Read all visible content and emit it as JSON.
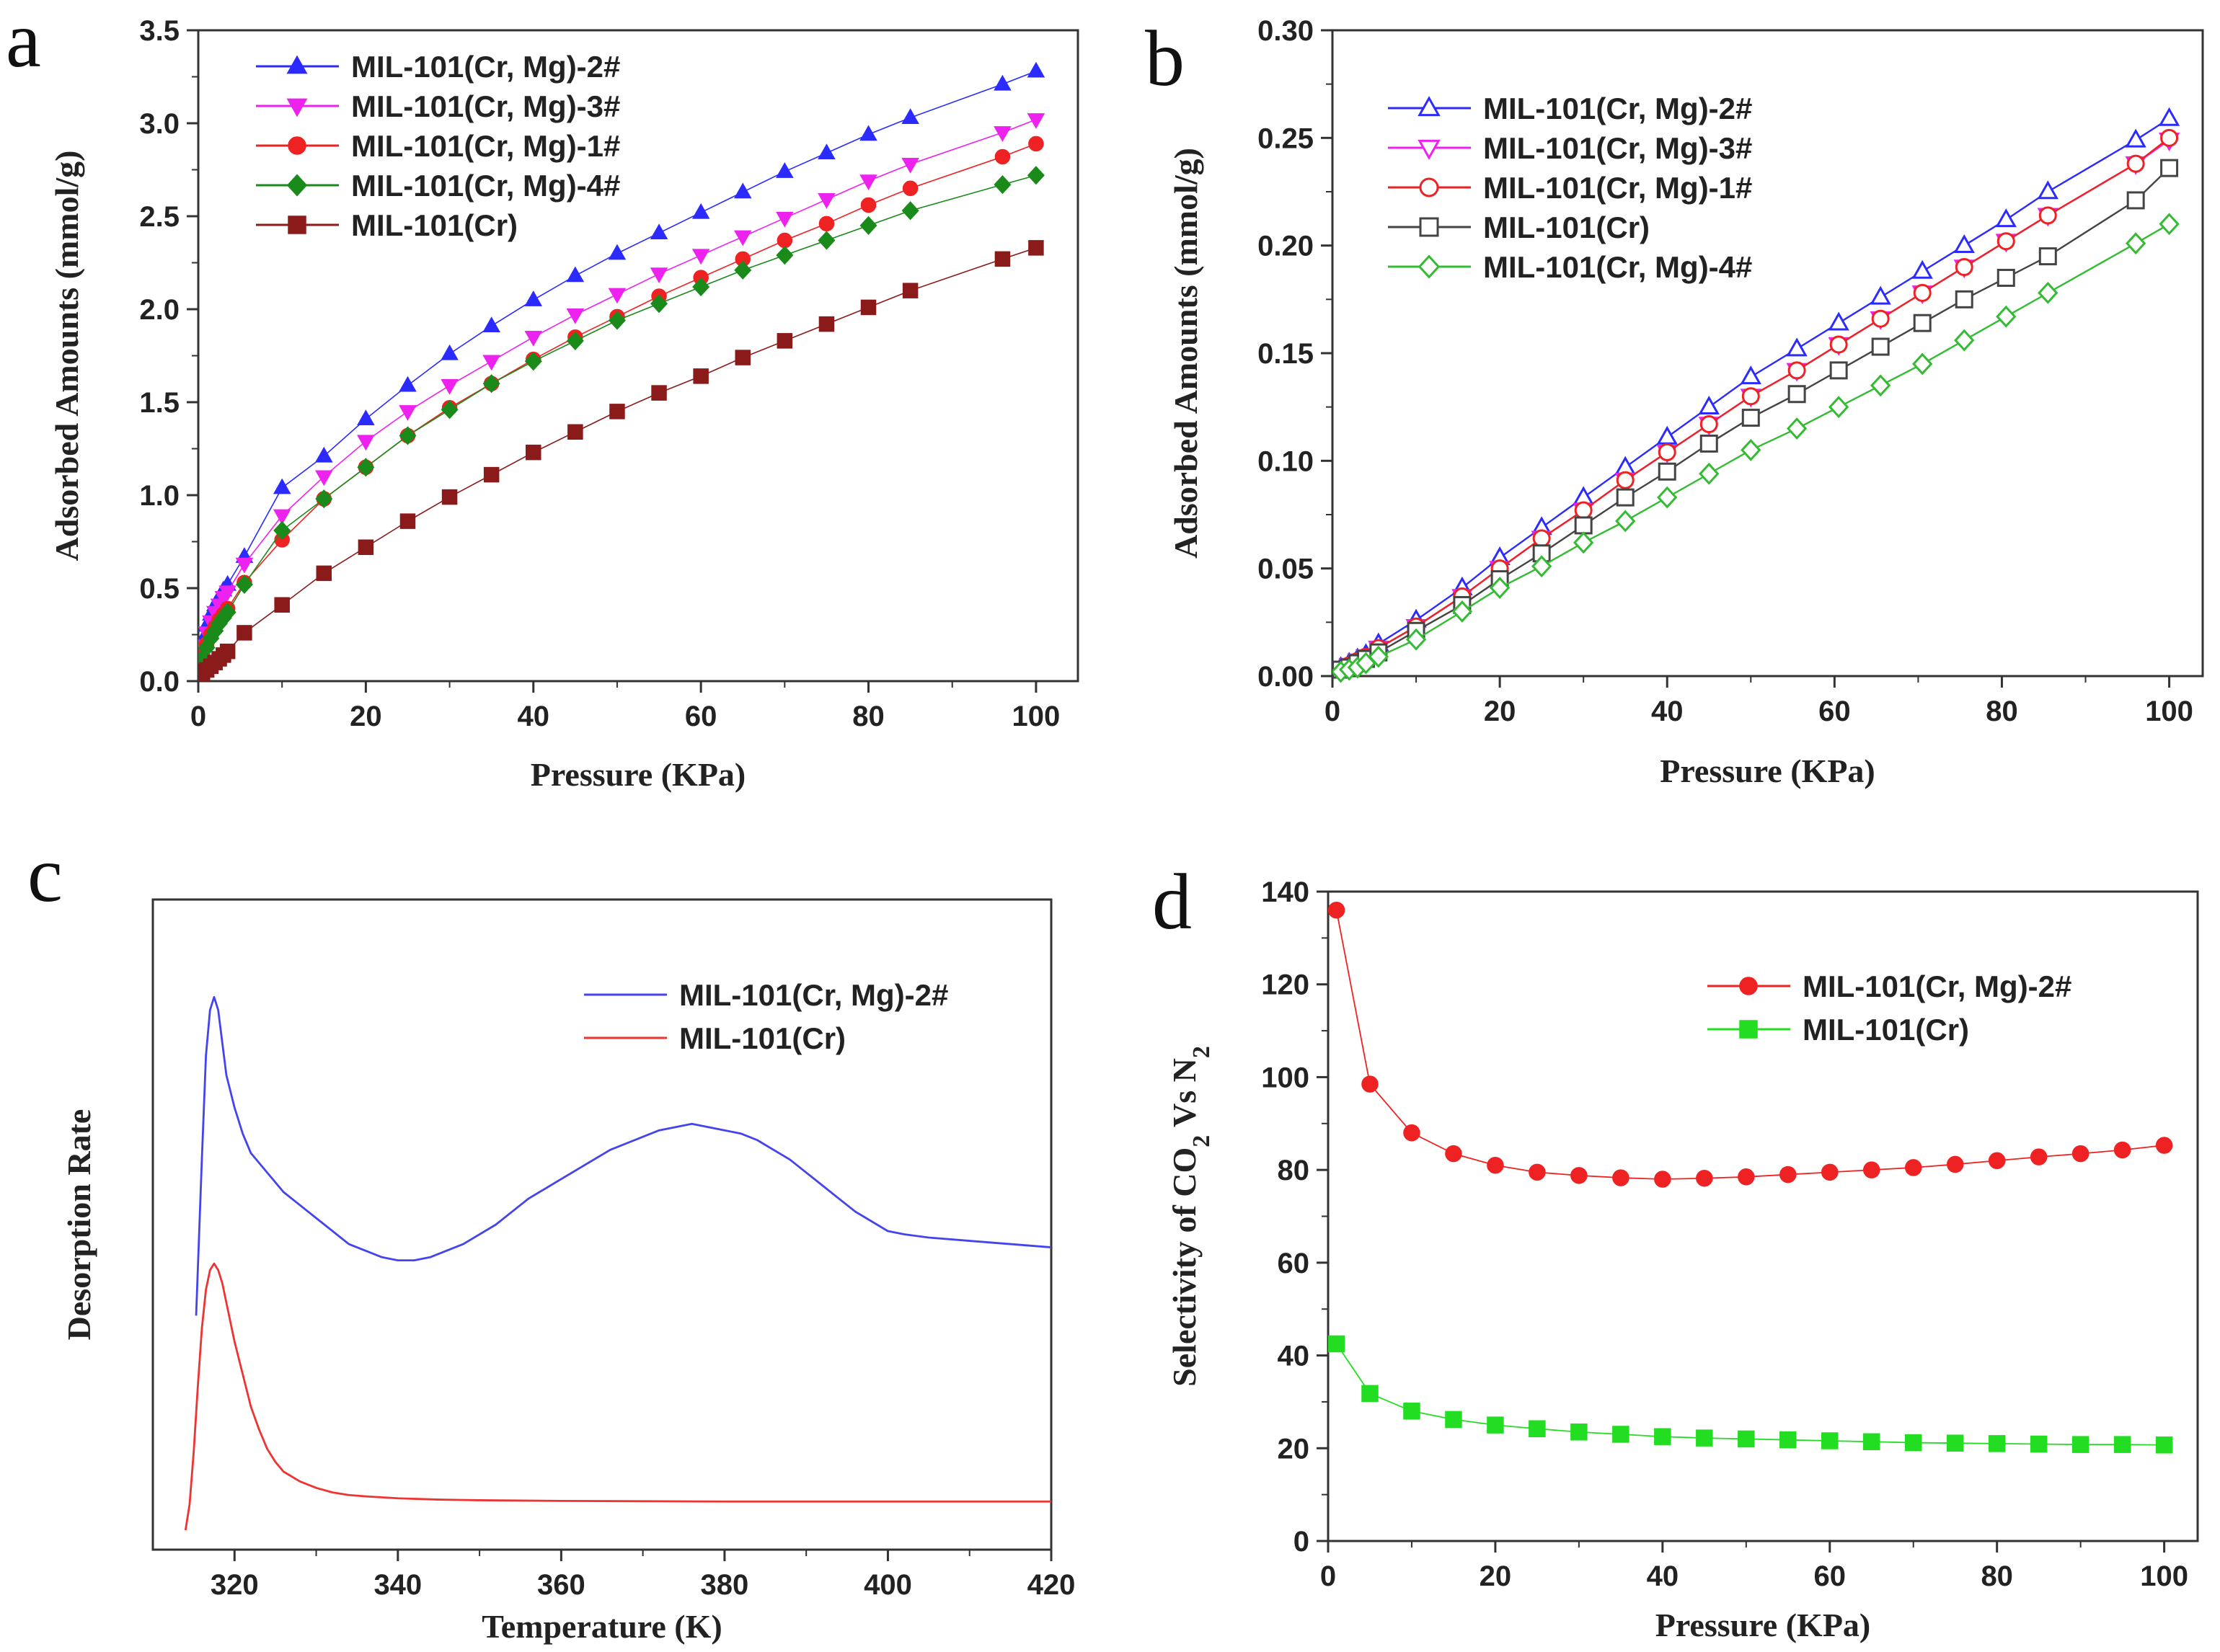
{
  "chart_data": [
    {
      "panel": "a",
      "type": "line",
      "xlabel": "Pressure (KPa)",
      "ylabel": "Adsorbed Amounts (mmol/g)",
      "xlim": [
        0,
        105
      ],
      "ylim": [
        0,
        3.5
      ],
      "xticks": [
        0,
        20,
        40,
        60,
        80,
        100
      ],
      "yticks": [
        0.0,
        0.5,
        1.0,
        1.5,
        2.0,
        2.5,
        3.0,
        3.5
      ],
      "ytick_decimals": 1,
      "legend_position": "top-left",
      "x": [
        0.5,
        1.0,
        1.5,
        2.0,
        2.5,
        3.0,
        3.5,
        5.5,
        10,
        15,
        20,
        25,
        30,
        35,
        40,
        45,
        50,
        55,
        60,
        65,
        70,
        75,
        80,
        85,
        96,
        100
      ],
      "series": [
        {
          "name": "MIL-101(Cr, Mg)-2#",
          "color": "#2b2bff",
          "marker": "triangle-up",
          "filled": true,
          "values": [
            0.22,
            0.3,
            0.36,
            0.41,
            0.45,
            0.49,
            0.52,
            0.67,
            1.04,
            1.21,
            1.41,
            1.59,
            1.76,
            1.91,
            2.05,
            2.18,
            2.3,
            2.41,
            2.52,
            2.63,
            2.74,
            2.84,
            2.94,
            3.03,
            3.21,
            3.28
          ]
        },
        {
          "name": "MIL-101(Cr, Mg)-3#",
          "color": "#ee22ee",
          "marker": "triangle-down",
          "filled": true,
          "values": [
            0.19,
            0.26,
            0.32,
            0.37,
            0.41,
            0.45,
            0.48,
            0.63,
            0.89,
            1.1,
            1.29,
            1.45,
            1.59,
            1.72,
            1.85,
            1.97,
            2.08,
            2.19,
            2.29,
            2.39,
            2.49,
            2.59,
            2.69,
            2.78,
            2.95,
            3.02
          ]
        },
        {
          "name": "MIL-101(Cr, Mg)-1#",
          "color": "#ee2222",
          "marker": "circle",
          "filled": true,
          "values": [
            0.14,
            0.2,
            0.25,
            0.29,
            0.33,
            0.36,
            0.39,
            0.53,
            0.76,
            0.98,
            1.15,
            1.32,
            1.47,
            1.6,
            1.73,
            1.85,
            1.96,
            2.07,
            2.17,
            2.27,
            2.37,
            2.46,
            2.56,
            2.65,
            2.82,
            2.89
          ]
        },
        {
          "name": "MIL-101(Cr, Mg)-4#",
          "color": "#1a8a1a",
          "marker": "diamond",
          "filled": true,
          "values": [
            0.12,
            0.18,
            0.23,
            0.27,
            0.31,
            0.34,
            0.37,
            0.52,
            0.81,
            0.98,
            1.15,
            1.32,
            1.46,
            1.6,
            1.72,
            1.83,
            1.94,
            2.03,
            2.12,
            2.21,
            2.29,
            2.37,
            2.45,
            2.53,
            2.67,
            2.72
          ]
        },
        {
          "name": "MIL-101(Cr)",
          "color": "#8b1a1a",
          "marker": "square",
          "filled": true,
          "values": [
            0.04,
            0.06,
            0.08,
            0.1,
            0.12,
            0.14,
            0.16,
            0.26,
            0.41,
            0.58,
            0.72,
            0.86,
            0.99,
            1.11,
            1.23,
            1.34,
            1.45,
            1.55,
            1.64,
            1.74,
            1.83,
            1.92,
            2.01,
            2.1,
            2.27,
            2.33
          ]
        }
      ]
    },
    {
      "panel": "b",
      "type": "line",
      "xlabel": "Pressure (KPa)",
      "ylabel": "Adsorbed Amounts (mmol/g)",
      "xlim": [
        0,
        104
      ],
      "ylim": [
        0,
        0.3
      ],
      "xticks": [
        0,
        20,
        40,
        60,
        80,
        100
      ],
      "yticks": [
        0.0,
        0.05,
        0.1,
        0.15,
        0.2,
        0.25,
        0.3
      ],
      "ytick_decimals": 2,
      "legend_position": "top-left",
      "x": [
        1,
        2,
        3,
        4,
        5.5,
        10,
        15.5,
        20,
        25,
        30,
        35,
        40,
        45,
        50,
        55.5,
        60.5,
        65.5,
        70.5,
        75.5,
        80.5,
        85.5,
        96,
        100
      ],
      "series": [
        {
          "name": "MIL-101(Cr, Mg)-2#",
          "color": "#2b2bff",
          "marker": "triangle-up",
          "filled": false,
          "values": [
            0.004,
            0.006,
            0.008,
            0.01,
            0.015,
            0.026,
            0.041,
            0.055,
            0.069,
            0.083,
            0.097,
            0.111,
            0.125,
            0.139,
            0.152,
            0.164,
            0.176,
            0.188,
            0.2,
            0.212,
            0.225,
            0.249,
            0.259
          ]
        },
        {
          "name": "MIL-101(Cr, Mg)-3#",
          "color": "#ee22ee",
          "marker": "triangle-down",
          "filled": false,
          "values": [
            0.003,
            0.005,
            0.007,
            0.009,
            0.013,
            0.023,
            0.037,
            0.05,
            0.064,
            0.077,
            0.091,
            0.104,
            0.117,
            0.13,
            0.142,
            0.154,
            0.166,
            0.178,
            0.19,
            0.202,
            0.214,
            0.238,
            0.249
          ]
        },
        {
          "name": "MIL-101(Cr, Mg)-1#",
          "color": "#ee2222",
          "marker": "circle",
          "filled": false,
          "values": [
            0.003,
            0.005,
            0.007,
            0.009,
            0.013,
            0.023,
            0.037,
            0.05,
            0.064,
            0.077,
            0.091,
            0.104,
            0.117,
            0.13,
            0.142,
            0.154,
            0.166,
            0.178,
            0.19,
            0.202,
            0.214,
            0.238,
            0.25
          ]
        },
        {
          "name": "MIL-101(Cr)",
          "color": "#444444",
          "marker": "square",
          "filled": false,
          "values": [
            0.003,
            0.004,
            0.006,
            0.008,
            0.011,
            0.021,
            0.033,
            0.045,
            0.057,
            0.07,
            0.083,
            0.095,
            0.108,
            0.12,
            0.131,
            0.142,
            0.153,
            0.164,
            0.175,
            0.185,
            0.195,
            0.221,
            0.236
          ]
        },
        {
          "name": "MIL-101(Cr, Mg)-4#",
          "color": "#33bb33",
          "marker": "diamond",
          "filled": false,
          "values": [
            0.002,
            0.003,
            0.004,
            0.006,
            0.009,
            0.017,
            0.03,
            0.041,
            0.051,
            0.062,
            0.072,
            0.083,
            0.094,
            0.105,
            0.115,
            0.125,
            0.135,
            0.145,
            0.156,
            0.167,
            0.178,
            0.201,
            0.21
          ]
        }
      ]
    },
    {
      "panel": "c",
      "type": "line",
      "xlabel": "Temperature (K)",
      "ylabel": "Desorption Rate",
      "xlim": [
        310,
        420
      ],
      "ylim": [
        0,
        100
      ],
      "xticks": [
        320,
        340,
        360,
        380,
        400,
        420
      ],
      "yticks": [],
      "ytick_decimals": 0,
      "legend_position": "top-right",
      "series": [
        {
          "name": "MIL-101(Cr, Mg)-2#",
          "color": "#4444ee",
          "marker": "none",
          "x": [
            315.3,
            316,
            316.5,
            317,
            317.5,
            318,
            318.5,
            319,
            320,
            321,
            322,
            324,
            326,
            328,
            330,
            332,
            334,
            336,
            338,
            340,
            342,
            344,
            346,
            348,
            350,
            352,
            354,
            356,
            358,
            360,
            362,
            364,
            366,
            368,
            370,
            372,
            374,
            376,
            378,
            380,
            382,
            384,
            386,
            388,
            390,
            392,
            394,
            396,
            398,
            400,
            402,
            405,
            410,
            415,
            420
          ],
          "values": [
            36,
            60,
            76,
            83,
            85,
            83,
            78,
            73,
            68,
            64,
            61,
            58,
            55,
            53,
            51,
            49,
            47,
            46,
            45,
            44.5,
            44.5,
            45,
            46,
            47,
            48.5,
            50,
            52,
            54,
            55.5,
            57,
            58.5,
            60,
            61.5,
            62.5,
            63.5,
            64.5,
            65,
            65.5,
            65,
            64.5,
            64,
            63,
            61.5,
            60,
            58,
            56,
            54,
            52,
            50.5,
            49,
            48.5,
            48,
            47.5,
            47,
            46.5
          ]
        },
        {
          "name": "MIL-101(Cr)",
          "color": "#ee3333",
          "marker": "none",
          "x": [
            314,
            314.5,
            315,
            315.5,
            316,
            316.5,
            317,
            317.5,
            318,
            318.5,
            319,
            320,
            321,
            322,
            323,
            324,
            325,
            326,
            328,
            330,
            332,
            334,
            336,
            340,
            345,
            350,
            360,
            380,
            400,
            420
          ],
          "values": [
            3,
            7,
            15,
            25,
            34,
            40,
            43,
            44,
            43,
            41,
            38,
            32,
            27,
            22,
            18.5,
            15.5,
            13.5,
            12,
            10.5,
            9.5,
            8.8,
            8.4,
            8.2,
            7.9,
            7.7,
            7.6,
            7.5,
            7.4,
            7.4,
            7.4
          ]
        }
      ]
    },
    {
      "panel": "d",
      "type": "line",
      "xlabel": "Pressure (KPa)",
      "ylabel": "Selectivity of CO₂ Vs N₂",
      "xlim": [
        0,
        104
      ],
      "ylim": [
        0,
        140
      ],
      "xticks": [
        0,
        20,
        40,
        60,
        80,
        100
      ],
      "yticks": [
        0,
        20,
        40,
        60,
        80,
        100,
        120,
        140
      ],
      "ytick_decimals": 0,
      "legend_position": "top-right",
      "x": [
        1,
        5,
        10,
        15,
        20,
        25,
        30,
        35,
        40,
        45,
        50,
        55,
        60,
        65,
        70,
        75,
        80,
        85,
        90,
        95,
        100
      ],
      "series": [
        {
          "name": "MIL-101(Cr, Mg)-2#",
          "color": "#ee2222",
          "marker": "circle",
          "filled": true,
          "values": [
            136,
            98.5,
            88,
            83.5,
            81,
            79.5,
            78.8,
            78.3,
            78,
            78.2,
            78.5,
            79,
            79.5,
            80,
            80.5,
            81.2,
            82,
            82.8,
            83.5,
            84.3,
            85.3
          ]
        },
        {
          "name": "MIL-101(Cr)",
          "color": "#22dd22",
          "marker": "square",
          "filled": true,
          "values": [
            42.5,
            31.8,
            28,
            26.2,
            25,
            24.2,
            23.5,
            23,
            22.5,
            22.2,
            22,
            21.8,
            21.6,
            21.4,
            21.2,
            21.1,
            21,
            20.9,
            20.8,
            20.8,
            20.7
          ]
        }
      ]
    }
  ]
}
